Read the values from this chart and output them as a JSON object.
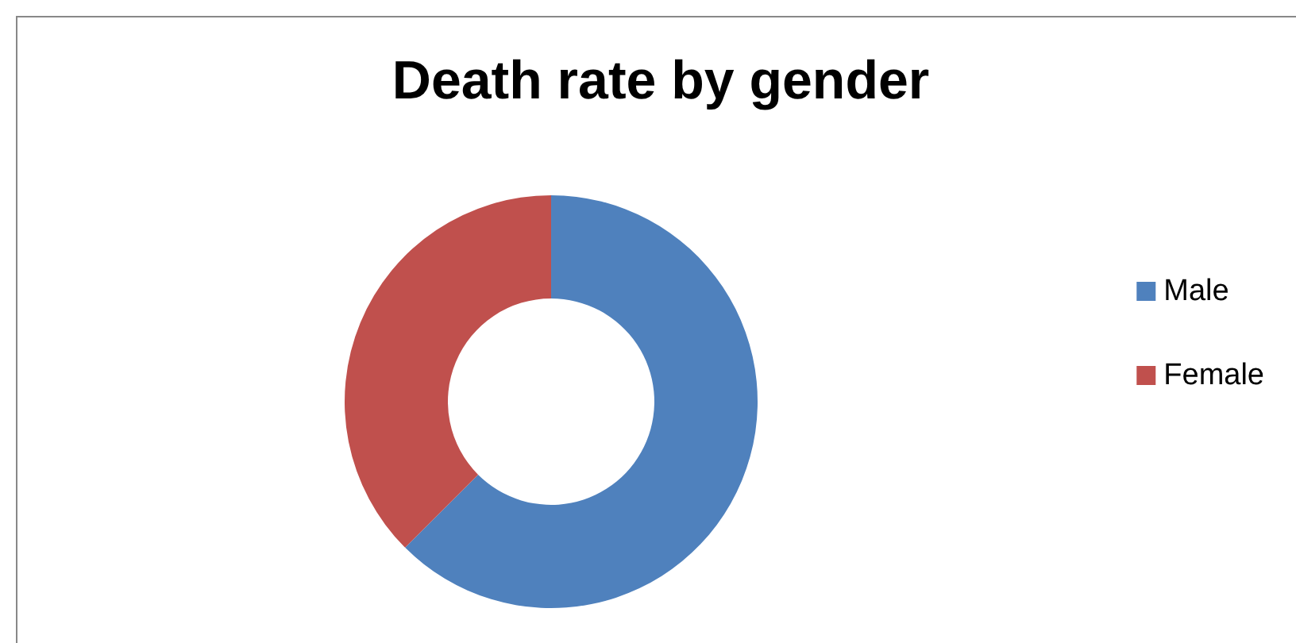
{
  "chart_data": {
    "type": "donut",
    "title": "Death rate by gender",
    "categories": [
      "Male",
      "Female"
    ],
    "values": [
      62.5,
      37.5
    ],
    "colors": [
      "#4f81bd",
      "#c0504d"
    ],
    "legend": "right"
  }
}
